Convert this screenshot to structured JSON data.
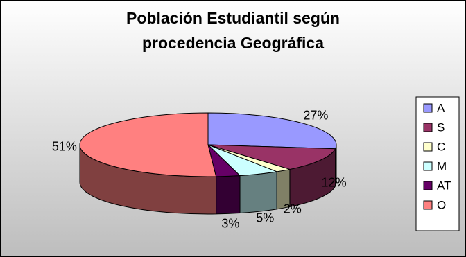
{
  "chart_data": {
    "type": "pie3d",
    "title": [
      "Población Estudiantil según",
      "procedencia Geográfica"
    ],
    "categories": [
      "A",
      "S",
      "C",
      "M",
      "AT",
      "O"
    ],
    "values": [
      27,
      12,
      2,
      5,
      3,
      51
    ],
    "value_labels": [
      "27%",
      "12%",
      "2%",
      "5%",
      "3%",
      "51%"
    ],
    "colors": [
      "#9999ff",
      "#993366",
      "#ffffcc",
      "#ccffff",
      "#660066",
      "#ff8080"
    ],
    "legend": "right"
  }
}
